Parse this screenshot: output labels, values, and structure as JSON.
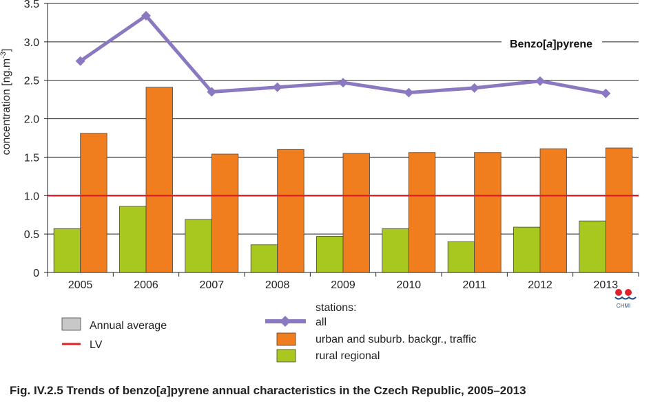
{
  "chart_data": {
    "type": "bar",
    "categories": [
      "2005",
      "2006",
      "2007",
      "2008",
      "2009",
      "2010",
      "2011",
      "2012",
      "2013"
    ],
    "ylabel": "concentration [ng.m-3]",
    "ylabel_main": "concentration [ng.m",
    "ylabel_sup": "-3",
    "ylabel_end": "]",
    "ylim": [
      0,
      3.5
    ],
    "yticks": [
      "0",
      "0.5",
      "1.0",
      "1.5",
      "2.0",
      "2.5",
      "3.0",
      "3.5"
    ],
    "grid": true,
    "annotation": {
      "before": "Benzo[",
      "italic": "a",
      "after": "]pyrene"
    },
    "series": [
      {
        "name": "rural regional",
        "type": "bar",
        "color": "#a8c81f",
        "values": [
          0.57,
          0.86,
          0.69,
          0.36,
          0.47,
          0.57,
          0.4,
          0.59,
          0.67
        ]
      },
      {
        "name": "urban and suburb. backgr., traffic",
        "type": "bar",
        "color": "#f07d1e",
        "values": [
          1.81,
          2.41,
          1.54,
          1.6,
          1.55,
          1.56,
          1.56,
          1.61,
          1.62
        ]
      },
      {
        "name": "all",
        "type": "line",
        "color": "#8a78c0",
        "values": [
          2.75,
          3.34,
          2.35,
          2.41,
          2.47,
          2.34,
          2.4,
          2.49,
          2.33
        ]
      }
    ],
    "limit_value": {
      "name": "LV",
      "value": 1.0,
      "color": "#e0202a"
    },
    "legend": {
      "left": [
        {
          "label": "Annual average",
          "kind": "box",
          "color": "#c8c8c8"
        },
        {
          "label": "LV",
          "kind": "redline",
          "color": "#e0202a"
        }
      ],
      "right_header": "stations:",
      "right": [
        {
          "label": "all",
          "kind": "line",
          "color": "#8a78c0"
        },
        {
          "label": "urban and suburb. backgr., traffic",
          "kind": "box",
          "color": "#f07d1e"
        },
        {
          "label": "rural regional",
          "kind": "box",
          "color": "#a8c81f"
        }
      ]
    }
  },
  "logo": {
    "text": "CHMI"
  },
  "caption": {
    "prefix": "Fig. IV.2.5  Trends of benzo[",
    "italic": "a",
    "suffix": "]pyrene annual characteristics in the Czech Republic, 2005–2013"
  }
}
